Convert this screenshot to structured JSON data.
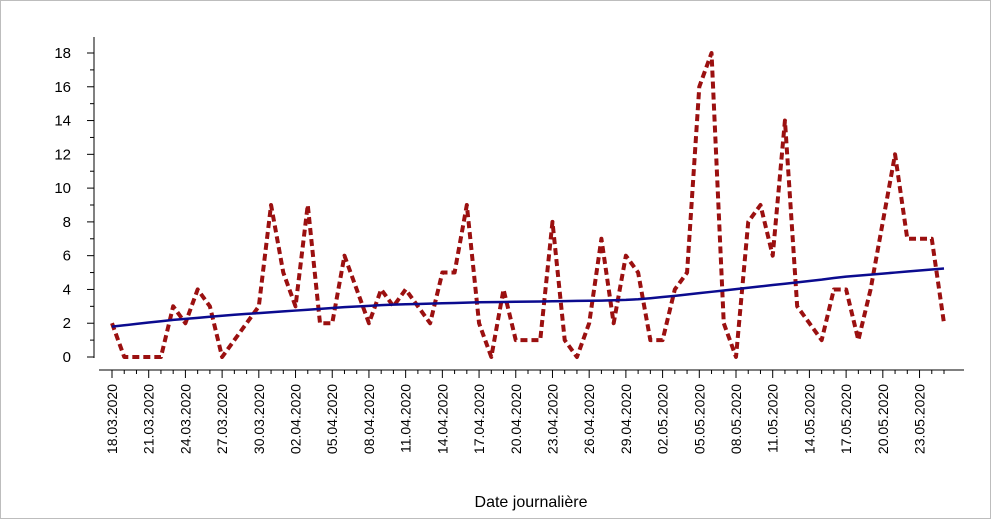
{
  "chart_data": {
    "type": "line",
    "xlabel": "Date journalière",
    "ylabel": "",
    "ylim": [
      0,
      18
    ],
    "yticks": [
      0,
      2,
      4,
      6,
      8,
      10,
      12,
      14,
      16,
      18
    ],
    "grid": false,
    "x": [
      "18.03.2020",
      "19.03.2020",
      "20.03.2020",
      "21.03.2020",
      "22.03.2020",
      "23.03.2020",
      "24.03.2020",
      "25.03.2020",
      "26.03.2020",
      "27.03.2020",
      "28.03.2020",
      "29.03.2020",
      "30.03.2020",
      "31.03.2020",
      "01.04.2020",
      "02.04.2020",
      "03.04.2020",
      "04.04.2020",
      "05.04.2020",
      "06.04.2020",
      "07.04.2020",
      "08.04.2020",
      "09.04.2020",
      "10.04.2020",
      "11.04.2020",
      "12.04.2020",
      "13.04.2020",
      "14.04.2020",
      "15.04.2020",
      "16.04.2020",
      "17.04.2020",
      "18.04.2020",
      "19.04.2020",
      "20.04.2020",
      "21.04.2020",
      "22.04.2020",
      "23.04.2020",
      "24.04.2020",
      "25.04.2020",
      "26.04.2020",
      "27.04.2020",
      "28.04.2020",
      "29.04.2020",
      "30.04.2020",
      "01.05.2020",
      "02.05.2020",
      "03.05.2020",
      "04.05.2020",
      "05.05.2020",
      "06.05.2020",
      "07.05.2020",
      "08.05.2020",
      "09.05.2020",
      "10.05.2020",
      "11.05.2020",
      "12.05.2020",
      "13.05.2020",
      "14.05.2020",
      "15.05.2020",
      "16.05.2020",
      "17.05.2020",
      "18.05.2020",
      "19.05.2020",
      "20.05.2020",
      "21.05.2020",
      "22.05.2020",
      "23.05.2020",
      "24.05.2020",
      "25.05.2020"
    ],
    "x_tick_labels": [
      "18.03.2020",
      "21.03.2020",
      "24.03.2020",
      "27.03.2020",
      "30.03.2020",
      "02.04.2020",
      "05.04.2020",
      "08.04.2020",
      "11.04.2020",
      "14.04.2020",
      "17.04.2020",
      "20.04.2020",
      "23.04.2020",
      "26.04.2020",
      "29.04.2020",
      "02.05.2020",
      "05.05.2020",
      "08.05.2020",
      "11.05.2020",
      "14.05.2020",
      "17.05.2020",
      "20.05.2020",
      "23.05.2020"
    ],
    "series": [
      {
        "style": "dashed",
        "color": "#9b1010",
        "values": [
          2,
          0,
          0,
          0,
          0,
          3,
          2,
          4,
          3,
          0,
          1,
          2,
          3,
          9,
          5,
          3,
          9,
          2,
          2,
          6,
          4,
          2,
          4,
          3,
          4,
          3,
          2,
          5,
          5,
          9,
          2,
          0,
          4,
          1,
          1,
          1,
          8,
          1,
          0,
          2,
          7,
          2,
          6,
          5,
          1,
          1,
          4,
          5,
          16,
          18,
          2,
          0,
          8,
          9,
          6,
          14,
          3,
          2,
          1,
          4,
          4,
          1,
          4,
          8,
          12,
          7,
          7,
          7,
          2
        ]
      },
      {
        "style": "solid",
        "color": "#0b0b8f",
        "values": [
          1.8,
          1.88,
          1.96,
          2.04,
          2.12,
          2.2,
          2.26,
          2.32,
          2.38,
          2.44,
          2.5,
          2.55,
          2.6,
          2.65,
          2.7,
          2.75,
          2.8,
          2.85,
          2.9,
          2.95,
          2.99,
          3.03,
          3.07,
          3.1,
          3.12,
          3.14,
          3.16,
          3.18,
          3.2,
          3.22,
          3.24,
          3.25,
          3.26,
          3.27,
          3.28,
          3.29,
          3.3,
          3.31,
          3.32,
          3.33,
          3.34,
          3.36,
          3.38,
          3.42,
          3.48,
          3.55,
          3.62,
          3.7,
          3.78,
          3.86,
          3.94,
          4.02,
          4.1,
          4.18,
          4.26,
          4.34,
          4.42,
          4.5,
          4.58,
          4.68,
          4.76,
          4.82,
          4.88,
          4.94,
          5.0,
          5.06,
          5.12,
          5.18,
          5.24
        ]
      }
    ]
  }
}
